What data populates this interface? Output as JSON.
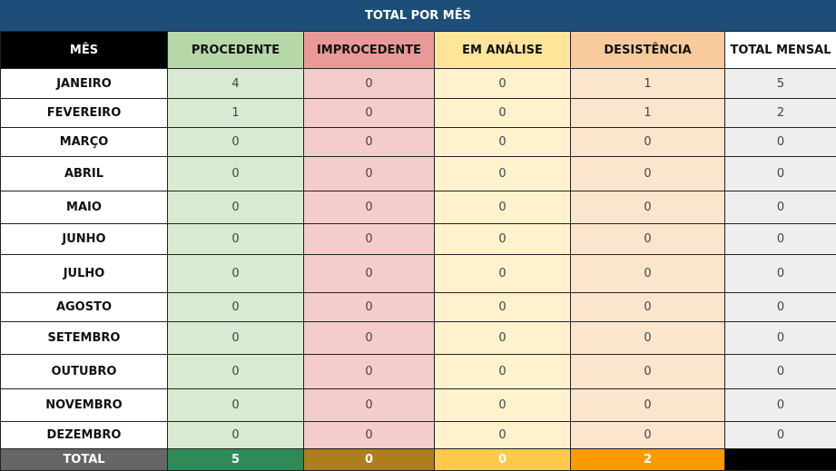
{
  "title": "TOTAL POR MÊS",
  "headers": [
    "MÊS",
    "PROCEDENTE",
    "IMPROCEDENTE",
    "EM ANÁLISE",
    "DESISTÊNCIA",
    "TOTAL MENSAL"
  ],
  "rows": [
    {
      "month": "JANEIRO",
      "values": [
        "4",
        "0",
        "0",
        "1",
        "5"
      ]
    },
    {
      "month": "FEVEREIRO",
      "values": [
        "1",
        "0",
        "0",
        "1",
        "2"
      ]
    },
    {
      "month": "MARÇO",
      "values": [
        "0",
        "0",
        "0",
        "0",
        "0"
      ]
    },
    {
      "month": "ABRIL",
      "values": [
        "0",
        "0",
        "0",
        "0",
        "0"
      ]
    },
    {
      "month": "MAIO",
      "values": [
        "0",
        "0",
        "0",
        "0",
        "0"
      ]
    },
    {
      "month": "JUNHO",
      "values": [
        "0",
        "0",
        "0",
        "0",
        "0"
      ]
    },
    {
      "month": "JULHO",
      "values": [
        "0",
        "0",
        "0",
        "0",
        "0"
      ]
    },
    {
      "month": "AGOSTO",
      "values": [
        "0",
        "0",
        "0",
        "0",
        "0"
      ]
    },
    {
      "month": "SETEMBRO",
      "values": [
        "0",
        "0",
        "0",
        "0",
        "0"
      ]
    },
    {
      "month": "OUTUBRO",
      "values": [
        "0",
        "0",
        "0",
        "0",
        "0"
      ]
    },
    {
      "month": "NOVEMBRO",
      "values": [
        "0",
        "0",
        "0",
        "0",
        "0"
      ]
    },
    {
      "month": "DEZEMBRO",
      "values": [
        "0",
        "0",
        "0",
        "0",
        "0"
      ]
    }
  ],
  "total": {
    "label": "TOTAL",
    "values": [
      "5",
      "0",
      "0",
      "2",
      ""
    ]
  },
  "colors": {
    "title_bg": "#1d4e79",
    "total_label": "#666666",
    "total_procedente": "#2e8b57",
    "total_improcedente": "#ad7e1e",
    "total_em_analise": "#ffc94a",
    "total_desistencia": "#ff9900",
    "total_mensal": "#000000"
  }
}
